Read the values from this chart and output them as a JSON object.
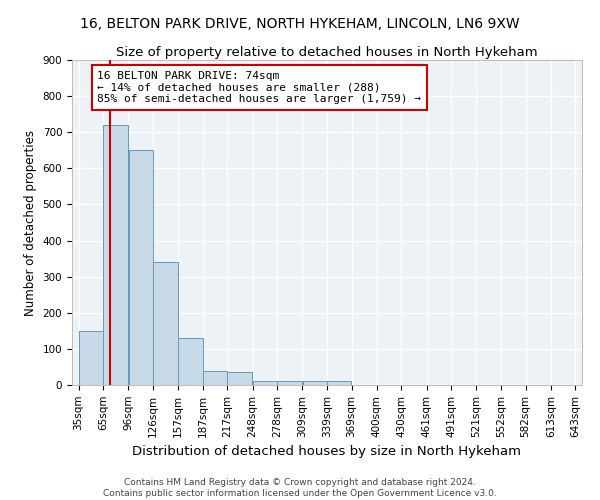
{
  "title1": "16, BELTON PARK DRIVE, NORTH HYKEHAM, LINCOLN, LN6 9XW",
  "title2": "Size of property relative to detached houses in North Hykeham",
  "xlabel": "Distribution of detached houses by size in North Hykeham",
  "ylabel": "Number of detached properties",
  "footer1": "Contains HM Land Registry data © Crown copyright and database right 2024.",
  "footer2": "Contains public sector information licensed under the Open Government Licence v3.0.",
  "bins": [
    35,
    65,
    96,
    126,
    157,
    187,
    217,
    248,
    278,
    309,
    339,
    369,
    400,
    430,
    461,
    491,
    521,
    552,
    582,
    613,
    643
  ],
  "bar_heights": [
    150,
    720,
    650,
    340,
    130,
    40,
    35,
    10,
    10,
    10,
    10,
    0,
    0,
    0,
    0,
    0,
    0,
    0,
    0,
    0
  ],
  "bar_color": "#c8d9e8",
  "bar_edge_color": "#6699bb",
  "property_line_x": 74,
  "property_line_color": "#cc0000",
  "annotation_line1": "16 BELTON PARK DRIVE: 74sqm",
  "annotation_line2": "← 14% of detached houses are smaller (288)",
  "annotation_line3": "85% of semi-detached houses are larger (1,759) →",
  "annotation_box_color": "#cc0000",
  "ylim": [
    0,
    900
  ],
  "yticks": [
    0,
    100,
    200,
    300,
    400,
    500,
    600,
    700,
    800,
    900
  ],
  "background_color": "#edf2f7",
  "grid_color": "#ffffff",
  "title1_fontsize": 10,
  "title2_fontsize": 9.5,
  "xlabel_fontsize": 9.5,
  "ylabel_fontsize": 8.5,
  "tick_fontsize": 7.5,
  "annotation_fontsize": 8,
  "footer_fontsize": 6.5
}
